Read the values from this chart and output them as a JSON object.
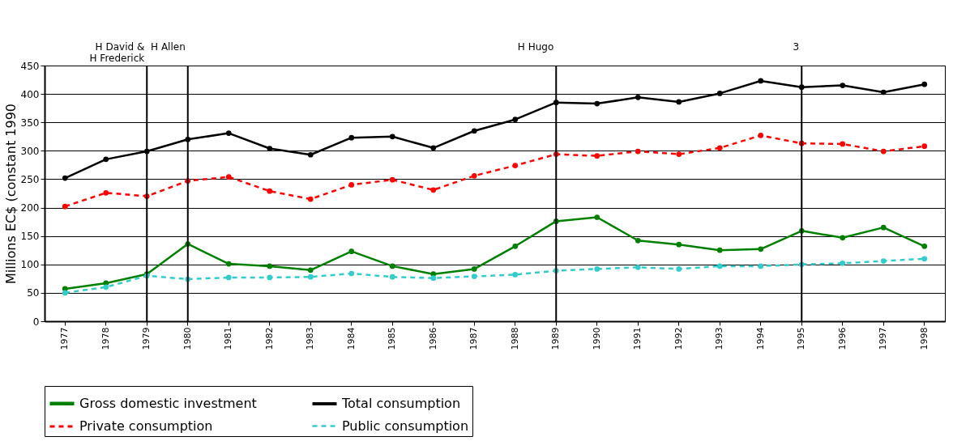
{
  "chart_data": {
    "type": "line",
    "ylabel": "Millions EC$ (constant 1990",
    "categories": [
      "1977",
      "1978",
      "1979",
      "1980",
      "1981",
      "1982",
      "1983",
      "1984",
      "1985",
      "1986",
      "1987",
      "1988",
      "1989",
      "1990",
      "1991",
      "1992",
      "1993",
      "1994",
      "1995",
      "1996",
      "1997",
      "1998"
    ],
    "ylim": [
      0,
      450
    ],
    "yticks": [
      0,
      50,
      100,
      150,
      200,
      250,
      300,
      350,
      400,
      450
    ],
    "grid": "y",
    "legend": "bottom",
    "marker": "circle",
    "series": [
      {
        "name": "Gross domestic investment",
        "color": "#008000",
        "line_style": "solid",
        "values": [
          57,
          67,
          83,
          136,
          101,
          97,
          90,
          123,
          97,
          83,
          92,
          132,
          176,
          183,
          142,
          135,
          125,
          127,
          159,
          147,
          165,
          132
        ]
      },
      {
        "name": "Total consumption",
        "color": "#000000",
        "line_style": "solid",
        "values": [
          252,
          285,
          299,
          320,
          331,
          304,
          293,
          323,
          325,
          305,
          335,
          355,
          385,
          383,
          394,
          386,
          401,
          423,
          412,
          415,
          403,
          417
        ]
      },
      {
        "name": "Private consumption",
        "color": "#ff0000",
        "line_style": "dashed",
        "values": [
          202,
          226,
          220,
          247,
          254,
          229,
          215,
          240,
          249,
          231,
          256,
          274,
          294,
          291,
          299,
          294,
          305,
          327,
          313,
          312,
          299,
          308
        ]
      },
      {
        "name": "Public consumption",
        "color": "#33cccc",
        "line_style": "dashed",
        "values": [
          50,
          60,
          80,
          74,
          77,
          77,
          78,
          84,
          78,
          76,
          79,
          82,
          89,
          92,
          95,
          92,
          97,
          97,
          100,
          102,
          106,
          110
        ]
      }
    ],
    "ref_lines": [
      {
        "axis": "x",
        "value": "1979",
        "label": "H David &\nH Frederick"
      },
      {
        "axis": "x",
        "value": "1980",
        "label": "H Allen"
      },
      {
        "axis": "x",
        "value": "1989",
        "label": "H Hugo"
      },
      {
        "axis": "x",
        "value": "1995",
        "label": "3"
      }
    ]
  }
}
